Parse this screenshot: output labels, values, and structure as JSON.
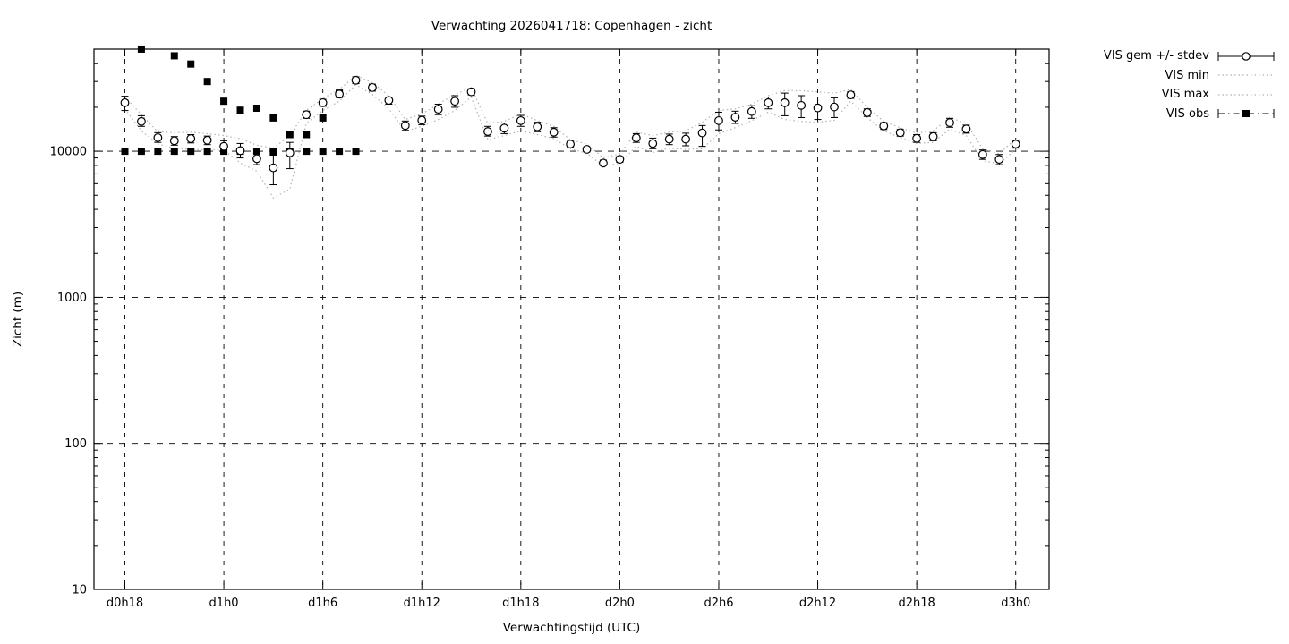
{
  "chart_data": {
    "type": "line",
    "title": "Verwachting 2026041718: Copenhagen - zicht",
    "xlabel": "Verwachtingstijd (UTC)",
    "ylabel": "Zicht (m)",
    "y_scale": "log",
    "ylim": [
      10,
      50000
    ],
    "y_ticks": [
      10,
      100,
      1000,
      10000
    ],
    "x_ticks": [
      {
        "t": 0,
        "label": "d0h18"
      },
      {
        "t": 6,
        "label": "d1h0"
      },
      {
        "t": 12,
        "label": "d1h6"
      },
      {
        "t": 18,
        "label": "d1h12"
      },
      {
        "t": 24,
        "label": "d1h18"
      },
      {
        "t": 30,
        "label": "d2h0"
      },
      {
        "t": 36,
        "label": "d2h6"
      },
      {
        "t": 42,
        "label": "d2h12"
      },
      {
        "t": 48,
        "label": "d2h18"
      },
      {
        "t": 54,
        "label": "d3h0"
      }
    ],
    "grid": true,
    "legend_position": "outside-top-right",
    "legend": [
      {
        "label": "VIS gem +/- stdev",
        "style": "errorbar-circle"
      },
      {
        "label": "VIS min",
        "style": "dotted"
      },
      {
        "label": "VIS max",
        "style": "dotted"
      },
      {
        "label": "VIS obs",
        "style": "dashdot-square"
      }
    ],
    "colors": {
      "foreground": "#000000",
      "envelope": "#b3b3b3",
      "background": "#ffffff"
    },
    "hours_start_label": "d0h18",
    "series": {
      "vis_gem": {
        "name": "VIS gem +/- stdev",
        "t": [
          0,
          1,
          2,
          3,
          4,
          5,
          6,
          7,
          8,
          9,
          10,
          11,
          12,
          13,
          14,
          15,
          16,
          17,
          18,
          19,
          20,
          21,
          22,
          23,
          24,
          25,
          26,
          27,
          28,
          29,
          30,
          31,
          32,
          33,
          34,
          35,
          36,
          37,
          38,
          39,
          40,
          41,
          42,
          43,
          44,
          45,
          46,
          47,
          48,
          49,
          50,
          51,
          52,
          53,
          54
        ],
        "values": [
          21500,
          16000,
          12400,
          11800,
          12200,
          11900,
          10800,
          10100,
          8900,
          7700,
          9750,
          17800,
          21500,
          24600,
          30600,
          27300,
          22300,
          15000,
          16300,
          19400,
          22000,
          25500,
          13650,
          14400,
          16200,
          14700,
          13500,
          11200,
          10300,
          8300,
          8800,
          12350,
          11300,
          12100,
          12100,
          13350,
          16200,
          17100,
          18700,
          21500,
          21500,
          20600,
          19800,
          20100,
          24300,
          18400,
          14900,
          13400,
          12250,
          12600,
          15700,
          14200,
          9500,
          8800,
          11200
        ],
        "err_lo": [
          19000,
          14800,
          11500,
          11000,
          11400,
          11100,
          9800,
          9000,
          8100,
          5900,
          7600,
          16800,
          20300,
          23300,
          29000,
          25800,
          21000,
          13900,
          15200,
          17800,
          20000,
          24300,
          12700,
          13200,
          14800,
          13600,
          12500,
          10700,
          9900,
          8000,
          8400,
          11500,
          10400,
          11100,
          10900,
          10800,
          14000,
          15500,
          16800,
          19500,
          17500,
          17000,
          16500,
          17000,
          23000,
          17300,
          14100,
          12700,
          11500,
          11800,
          14600,
          13300,
          8800,
          8100,
          10500
        ],
        "err_hi": [
          23800,
          17500,
          13400,
          12600,
          13000,
          12700,
          11800,
          11300,
          9700,
          9400,
          11500,
          18800,
          22700,
          26000,
          32300,
          28800,
          23500,
          16100,
          17400,
          21000,
          24000,
          26800,
          14800,
          15600,
          17600,
          15800,
          14500,
          11700,
          10700,
          8700,
          9200,
          13200,
          12300,
          13100,
          13300,
          15000,
          18500,
          18800,
          20500,
          23500,
          25000,
          24000,
          23500,
          23200,
          25600,
          19500,
          15700,
          14100,
          13000,
          13400,
          16800,
          15100,
          10200,
          9500,
          11900
        ]
      },
      "vis_min": {
        "name": "VIS min",
        "values": [
          19500,
          13800,
          11200,
          10500,
          10300,
          10200,
          10200,
          8300,
          7300,
          4800,
          5500,
          15500,
          19000,
          22000,
          28500,
          24500,
          19500,
          13700,
          14800,
          16500,
          19000,
          23500,
          12000,
          12800,
          13800,
          13000,
          12200,
          10400,
          9700,
          7900,
          8300,
          10800,
          9800,
          10500,
          10300,
          10400,
          13200,
          14500,
          16200,
          18500,
          16500,
          16000,
          15800,
          16300,
          22000,
          17000,
          13800,
          12400,
          11300,
          11500,
          14200,
          12800,
          8600,
          8200,
          10300
        ]
      },
      "vis_max": {
        "name": "VIS max",
        "values": [
          23600,
          17800,
          13600,
          13400,
          13500,
          13200,
          12800,
          12200,
          11000,
          10500,
          12800,
          19000,
          23000,
          26500,
          33000,
          29500,
          24000,
          16500,
          18000,
          21000,
          24500,
          27200,
          15500,
          16000,
          18000,
          16200,
          14800,
          12000,
          11200,
          9000,
          9600,
          13500,
          12800,
          13500,
          13800,
          15800,
          19000,
          19500,
          21000,
          24000,
          26000,
          26000,
          25500,
          25000,
          26500,
          20000,
          16000,
          14500,
          13300,
          13800,
          17000,
          15500,
          10400,
          9600,
          12200
        ]
      },
      "vis_obs": {
        "name": "VIS obs",
        "points": [
          [
            0,
            10000
          ],
          [
            1,
            10000
          ],
          [
            1,
            50000
          ],
          [
            2,
            10000
          ],
          [
            3,
            10000
          ],
          [
            3,
            45000
          ],
          [
            4,
            10000
          ],
          [
            4,
            39500
          ],
          [
            5,
            10000
          ],
          [
            5,
            30000
          ],
          [
            6,
            10000
          ],
          [
            6,
            22000
          ],
          [
            7,
            10000
          ],
          [
            7,
            19100
          ],
          [
            8,
            10000
          ],
          [
            8,
            19700
          ],
          [
            9,
            10000
          ],
          [
            9,
            16900
          ],
          [
            10,
            10000
          ],
          [
            10,
            13000
          ],
          [
            11,
            10000
          ],
          [
            11,
            13000
          ],
          [
            12,
            10000
          ],
          [
            12,
            16900
          ],
          [
            13,
            10000
          ],
          [
            13,
            25000
          ],
          [
            14,
            10000
          ]
        ]
      }
    }
  }
}
